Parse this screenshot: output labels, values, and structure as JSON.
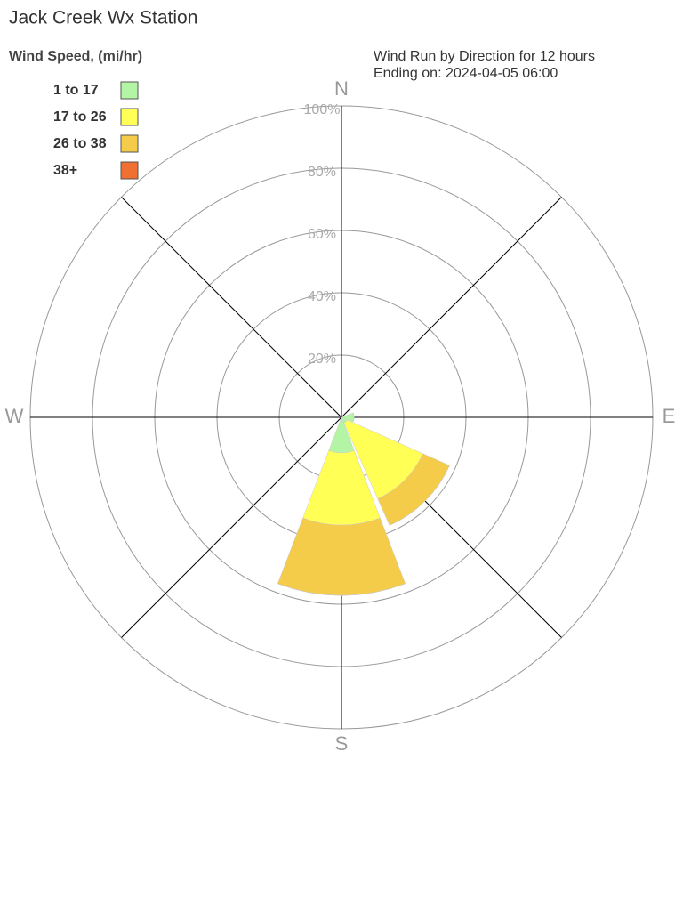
{
  "chart_data": {
    "type": "windrose",
    "title": "Jack Creek Wx Station",
    "legend_title": "Wind Speed, (mi/hr)",
    "subtitle": "Wind Run by Direction for 12 hours",
    "subtitle2": "Ending on: 2024-04-05 06:00",
    "categories": [
      "N",
      null,
      "E",
      null,
      "S",
      null,
      "W",
      null
    ],
    "rlim": [
      0,
      100
    ],
    "rticks": [
      {
        "value": 20,
        "label": "20%"
      },
      {
        "value": 40,
        "label": "40%"
      },
      {
        "value": 60,
        "label": "60%"
      },
      {
        "value": 80,
        "label": "80%"
      },
      {
        "value": 100,
        "label": "100%"
      }
    ],
    "series": [
      {
        "name": "1 to 17",
        "color": "#b4f5a5",
        "values": [
          0,
          0,
          4,
          2,
          11.4,
          0,
          0,
          0
        ]
      },
      {
        "name": "17 to 26",
        "color": "#ffff55",
        "values": [
          0,
          0,
          0,
          26.6,
          23.2,
          0,
          0,
          0
        ]
      },
      {
        "name": "26 to 38",
        "color": "#f5cb4a",
        "values": [
          0,
          0,
          0,
          9.4,
          22.6,
          0,
          0,
          0
        ]
      },
      {
        "name": "38+",
        "color": "#ef7030",
        "values": [
          0,
          0,
          0,
          0,
          0,
          0,
          0,
          0
        ]
      }
    ]
  }
}
